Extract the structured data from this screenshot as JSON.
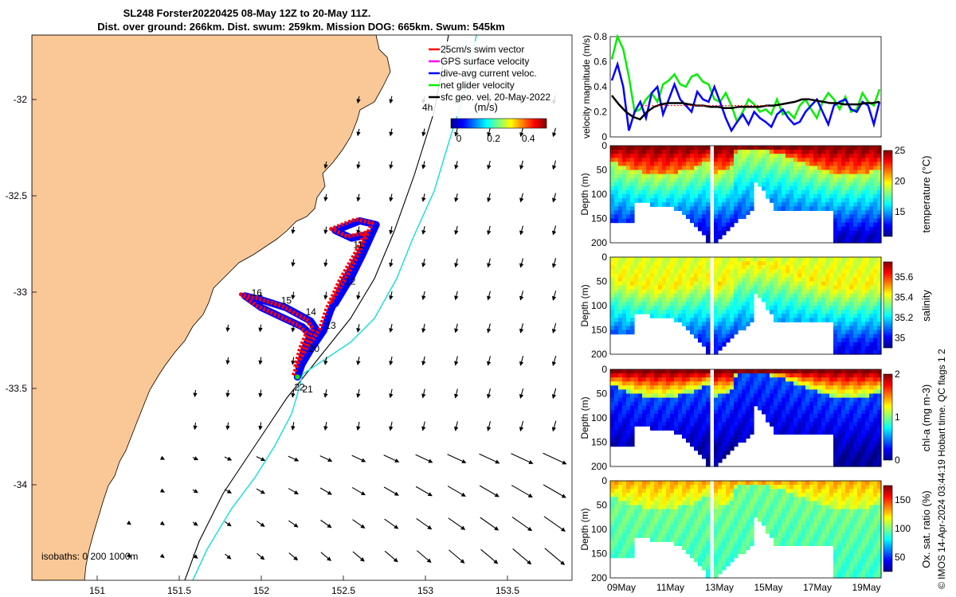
{
  "map": {
    "title_line1": "SL248 Forster20220425 08-May 12Z to 20-May 11Z.",
    "title_line2": "Dist. over ground: 266km. Dist. swum: 259km. Mission DOG: 665km. Swum: 545km",
    "lon_ticks": [
      "151",
      "151.5",
      "152",
      "152.5",
      "153",
      "153.5"
    ],
    "lat_ticks": [
      "-32",
      "-32.5",
      "-33",
      "-33.5",
      "-34"
    ],
    "legend": [
      "25cm/s swim vector",
      "GPS surface velocity",
      "dive-avg current veloc.",
      "net glider velocity",
      "sfc geo. vel. 20-May-2022"
    ],
    "legend_colors": [
      "#ff0000",
      "#ff00ff",
      "#0000ff",
      "#00ee00",
      "#000000"
    ],
    "cbar_title": "(m/s)",
    "cbar_ticks": [
      "0",
      "0.2",
      "0.4"
    ],
    "hours_label": "4h",
    "isobaths": "isobaths: 0   200  1000m",
    "day_labels": [
      {
        "t": "11",
        "lon": 152.56,
        "lat": -32.77
      },
      {
        "t": "12",
        "lon": 152.51,
        "lat": -32.96
      },
      {
        "t": "13",
        "lon": 152.39,
        "lat": -33.19
      },
      {
        "t": "14",
        "lon": 152.27,
        "lat": -33.12
      },
      {
        "t": "15",
        "lon": 152.12,
        "lat": -33.06
      },
      {
        "t": "16",
        "lon": 151.94,
        "lat": -33.02
      },
      {
        "t": "20",
        "lon": 152.29,
        "lat": -33.31
      },
      {
        "t": "21",
        "lon": 152.25,
        "lat": -33.52
      },
      {
        "t": "22",
        "lon": 152.2,
        "lat": -33.51
      }
    ],
    "track_lonlat": [
      [
        152.22,
        -33.44
      ],
      [
        152.28,
        -33.3
      ],
      [
        152.34,
        -33.2
      ],
      [
        152.3,
        -33.15
      ],
      [
        152.15,
        -33.08
      ],
      [
        152.0,
        -33.04
      ],
      [
        151.9,
        -33.02
      ],
      [
        152.0,
        -33.08
      ],
      [
        152.15,
        -33.14
      ],
      [
        152.25,
        -33.18
      ],
      [
        152.3,
        -33.22
      ],
      [
        152.26,
        -33.3
      ],
      [
        152.23,
        -33.4
      ],
      [
        152.3,
        -33.3
      ],
      [
        152.38,
        -33.2
      ],
      [
        152.42,
        -33.1
      ],
      [
        152.5,
        -32.95
      ],
      [
        152.6,
        -32.8
      ],
      [
        152.66,
        -32.7
      ],
      [
        152.55,
        -32.72
      ],
      [
        152.45,
        -32.68
      ],
      [
        152.6,
        -32.63
      ],
      [
        152.7,
        -32.65
      ],
      [
        152.62,
        -32.8
      ],
      [
        152.55,
        -32.92
      ],
      [
        152.45,
        -33.06
      ]
    ]
  },
  "chart_data": [
    {
      "type": "line",
      "title": "",
      "xlabel": "",
      "ylabel": "velocity magnitude (m/s)",
      "xlim": [
        0,
        12
      ],
      "ylim": [
        0,
        0.8
      ],
      "yticks": [
        "0",
        "0.2",
        "0.4",
        "0.6",
        "0.8"
      ],
      "series": [
        {
          "color": "#00ee00",
          "values": [
            0.62,
            0.8,
            0.7,
            0.48,
            0.2,
            0.22,
            0.3,
            0.35,
            0.28,
            0.42,
            0.45,
            0.5,
            0.42,
            0.4,
            0.48,
            0.5,
            0.44,
            0.42,
            0.3,
            0.28,
            0.35,
            0.25,
            0.12,
            0.2,
            0.3,
            0.26,
            0.2,
            0.22,
            0.18,
            0.3,
            0.18,
            0.2,
            0.15,
            0.25,
            0.3,
            0.22,
            0.15,
            0.28,
            0.35,
            0.3,
            0.22,
            0.32,
            0.2,
            0.22,
            0.35,
            0.28,
            0.25,
            0.38
          ]
        },
        {
          "color": "#0000ff",
          "values": [
            0.45,
            0.58,
            0.4,
            0.05,
            0.2,
            0.28,
            0.15,
            0.35,
            0.4,
            0.18,
            0.3,
            0.42,
            0.3,
            0.25,
            0.2,
            0.36,
            0.3,
            0.28,
            0.4,
            0.28,
            0.15,
            0.05,
            0.12,
            0.18,
            0.1,
            0.2,
            0.15,
            0.12,
            0.08,
            0.18,
            0.22,
            0.15,
            0.1,
            0.12,
            0.2,
            0.25,
            0.3,
            0.2,
            0.1,
            0.25,
            0.28,
            0.3,
            0.22,
            0.2,
            0.28,
            0.25,
            0.1,
            0.28
          ]
        },
        {
          "color": "#000000",
          "values": [
            0.33,
            0.26,
            0.2,
            0.16,
            0.14,
            0.2,
            0.24,
            0.26,
            0.27,
            0.27,
            0.27,
            0.26,
            0.25,
            0.25,
            0.24,
            0.24,
            0.23,
            0.23,
            0.24,
            0.24,
            0.24,
            0.24,
            0.25,
            0.25,
            0.26,
            0.27,
            0.28,
            0.3,
            0.3,
            0.29,
            0.28,
            0.27,
            0.27,
            0.26,
            0.26,
            0.26,
            0.27,
            0.27,
            0.28
          ]
        },
        {
          "color": "#ff0000",
          "values": [
            0.25,
            0.25,
            0.25,
            0.25,
            0.25,
            0.25,
            0.25,
            0.25,
            0.25,
            0.25,
            0.25,
            0.25,
            0.25,
            0.25,
            0.25
          ]
        }
      ]
    },
    {
      "type": "heatmap",
      "ylabel": "Depth (m)",
      "clabel": "temperature (°C)",
      "ylim": [
        0,
        200
      ],
      "yticks": [
        "0",
        "50",
        "100",
        "150"
      ],
      "cbar_ticks": [
        "15",
        "20",
        "25"
      ],
      "crange": [
        11,
        25
      ],
      "surface": 25,
      "mid": 19,
      "bottom": 12
    },
    {
      "type": "heatmap",
      "ylabel": "Depth (m)",
      "clabel": "salinity",
      "ylim": [
        0,
        200
      ],
      "yticks": [
        "0",
        "50",
        "100",
        "150"
      ],
      "cbar_ticks": [
        "35",
        "35.2",
        "35.4",
        "35.6"
      ],
      "crange": [
        34.9,
        35.75
      ],
      "surface": 35.4,
      "mid": 35.45,
      "bottom": 35.0
    },
    {
      "type": "heatmap",
      "ylabel": "Depth (m)",
      "clabel": "chl-a (mg m-3)",
      "ylim": [
        0,
        200
      ],
      "yticks": [
        "0",
        "50",
        "100",
        "150"
      ],
      "cbar_ticks": [
        "0",
        "1",
        "2"
      ],
      "crange": [
        0,
        2
      ],
      "surface": 2.0,
      "mid": 0.4,
      "bottom": 0.05
    },
    {
      "type": "heatmap",
      "ylabel": "Depth (m)",
      "clabel": "Ox. sat. ratio (%)",
      "ylim": [
        0,
        200
      ],
      "yticks": [
        "0",
        "50",
        "100",
        "150"
      ],
      "cbar_ticks": [
        "50",
        "100",
        "150"
      ],
      "crange": [
        25,
        175
      ],
      "surface": 130,
      "mid": 98,
      "bottom": 90,
      "xticks": [
        "09May",
        "11May",
        "13May",
        "15May",
        "17May",
        "19May"
      ]
    }
  ],
  "footer": "© IMOS 14-Apr-2024 03:44:19 Hobart time. QC flags 1  2"
}
